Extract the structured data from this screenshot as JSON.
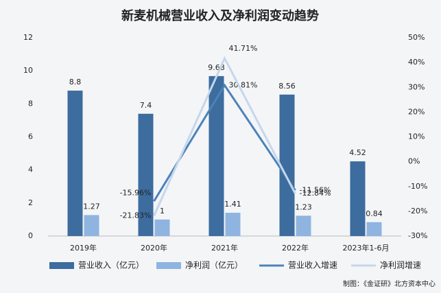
{
  "chart_data": {
    "type": "bar",
    "title": "新麦机械营业收入及净利润变动趋势",
    "source": "制图：《金证研》北方资本中心",
    "categories": [
      "2019年",
      "2020年",
      "2021年",
      "2022年",
      "2023年1-6月"
    ],
    "series": [
      {
        "name": "营业收入（亿元）",
        "type": "bar",
        "color": "#3d6c9e",
        "values": [
          8.8,
          7.4,
          9.68,
          8.56,
          4.52
        ]
      },
      {
        "name": "净利润（亿元）",
        "type": "bar",
        "color": "#8fb4e0",
        "values": [
          1.27,
          1,
          1.41,
          1.23,
          0.84
        ]
      },
      {
        "name": "营业收入增速",
        "type": "line",
        "axis": "y2",
        "color": "#4d82b8",
        "values": [
          null,
          -15.96,
          30.81,
          -11.56,
          null
        ],
        "value_labels": [
          null,
          "-15.96%",
          "30.81%",
          "-11.56%",
          null
        ]
      },
      {
        "name": "净利润增速",
        "type": "line",
        "axis": "y2",
        "color": "#c6d6ec",
        "values": [
          null,
          -21.83,
          41.71,
          -12.84,
          null
        ],
        "value_labels": [
          null,
          "-21.83%",
          "41.71%",
          "-12.84%",
          null
        ]
      }
    ],
    "ylim": [
      0,
      12
    ],
    "yticks": [
      0,
      2,
      4,
      6,
      8,
      10,
      12
    ],
    "y2lim": [
      -30,
      50
    ],
    "y2ticks": [
      {
        "value": -30,
        "label": "-30%"
      },
      {
        "value": -20,
        "label": "-20%"
      },
      {
        "value": -10,
        "label": "-10%"
      },
      {
        "value": 0,
        "label": "0%"
      },
      {
        "value": 10,
        "label": "10%"
      },
      {
        "value": 20,
        "label": "20%"
      },
      {
        "value": 30,
        "label": "30%"
      },
      {
        "value": 40,
        "label": "40%"
      },
      {
        "value": 50,
        "label": "50%"
      }
    ],
    "grid": false
  }
}
